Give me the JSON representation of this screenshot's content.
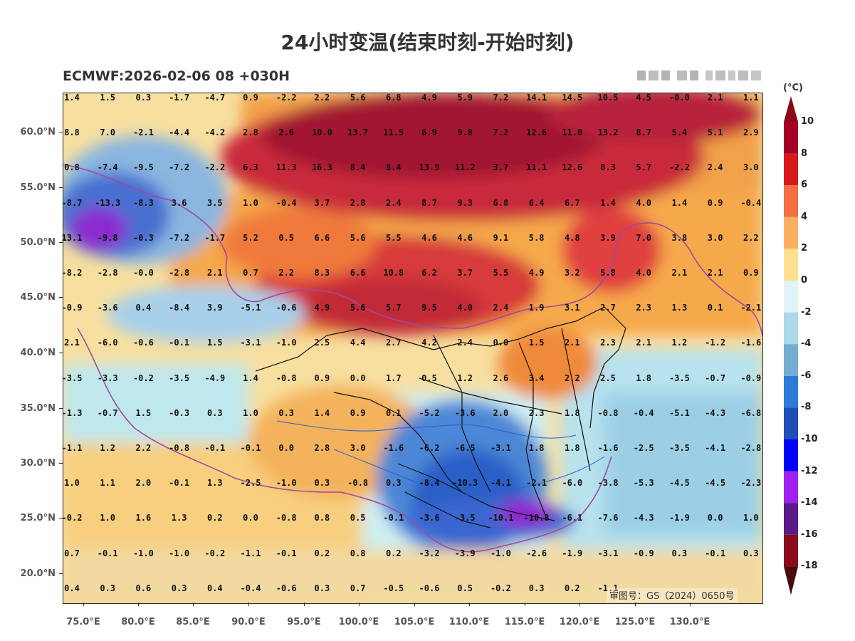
{
  "title": "24小时变温(结束时刻-开始时刻)",
  "subtitle": "ECMWF:2026-02-06 08 +030H",
  "review_number": "审图号：GS（2024）0650号",
  "lat_labels": [
    "60.0°N",
    "55.0°N",
    "50.0°N",
    "45.0°N",
    "40.0°N",
    "35.0°N",
    "30.0°N",
    "25.0°N",
    "20.0°N"
  ],
  "lon_labels": [
    "75.0°E",
    "80.0°E",
    "85.0°E",
    "90.0°E",
    "95.0°E",
    "100.0°E",
    "105.0°E",
    "110.0°E",
    "115.0°E",
    "120.0°E",
    "125.0°E",
    "130.0°E"
  ],
  "colorbar": {
    "unit": "(°C)",
    "labels": [
      "10",
      "8",
      "6",
      "4",
      "2",
      "0",
      "-2",
      "-4",
      "-6",
      "-8",
      "-10",
      "-12",
      "-14",
      "-16",
      "-18"
    ],
    "colors": [
      "#a50026",
      "#d7191c",
      "#f46d43",
      "#fdae61",
      "#fee090",
      "#e0f3f8",
      "#abd9e9",
      "#74add1",
      "#2c7bd6",
      "#1f4fb8",
      "#0000ff",
      "#a020f0",
      "#5a1a8a",
      "#8b0a1a"
    ]
  },
  "grid_values": [
    [
      "1.4",
      "1.5",
      "0.3",
      "-1.7",
      "-4.7",
      "0.9",
      "-2.2",
      "2.2",
      "5.6",
      "6.8",
      "4.9",
      "5.9",
      "7.2",
      "14.1",
      "14.5",
      "10.5",
      "4.5",
      "-0.0",
      "2.1",
      "1.1"
    ],
    [
      "8.8",
      "7.0",
      "-2.1",
      "-4.4",
      "-4.2",
      "2.8",
      "2.6",
      "10.0",
      "13.7",
      "11.5",
      "6.9",
      "9.8",
      "7.2",
      "12.6",
      "11.0",
      "13.2",
      "8.7",
      "5.4",
      "5.1",
      "2.9"
    ],
    [
      "0.8",
      "-7.4",
      "-9.5",
      "-7.2",
      "-2.2",
      "6.3",
      "11.3",
      "16.3",
      "8.4",
      "8.4",
      "13.9",
      "11.2",
      "3.7",
      "11.1",
      "12.6",
      "8.3",
      "5.7",
      "-2.2",
      "2.4",
      "3.0"
    ],
    [
      "-8.7",
      "-13.3",
      "-8.3",
      "3.6",
      "3.5",
      "1.0",
      "-0.4",
      "3.7",
      "2.8",
      "2.4",
      "8.7",
      "9.3",
      "6.8",
      "6.4",
      "6.7",
      "1.4",
      "4.0",
      "1.4",
      "0.9",
      "-0.4"
    ],
    [
      "13.1",
      "-9.8",
      "-0.3",
      "-7.2",
      "-1.7",
      "5.2",
      "0.5",
      "6.6",
      "5.6",
      "5.5",
      "4.6",
      "4.6",
      "9.1",
      "5.8",
      "4.8",
      "3.9",
      "7.0",
      "3.8",
      "3.0",
      "2.2"
    ],
    [
      "-8.2",
      "-2.8",
      "-0.0",
      "-2.8",
      "2.1",
      "0.7",
      "2.2",
      "8.3",
      "6.6",
      "10.8",
      "6.2",
      "3.7",
      "5.5",
      "4.9",
      "3.2",
      "5.8",
      "4.0",
      "2.1",
      "2.1",
      "0.9"
    ],
    [
      "-0.9",
      "-3.6",
      "0.4",
      "-8.4",
      "3.9",
      "-5.1",
      "-0.6",
      "4.9",
      "5.6",
      "5.7",
      "9.5",
      "4.0",
      "2.4",
      "1.9",
      "3.1",
      "2.7",
      "2.3",
      "1.3",
      "0.1",
      "-2.1"
    ],
    [
      "2.1",
      "-6.0",
      "-0.6",
      "-0.1",
      "1.5",
      "-3.1",
      "-1.0",
      "2.5",
      "4.4",
      "2.7",
      "4.2",
      "2.4",
      "0.0",
      "1.5",
      "2.1",
      "2.3",
      "2.1",
      "1.2",
      "-1.2",
      "-1.6"
    ],
    [
      "-3.5",
      "-3.3",
      "-0.2",
      "-3.5",
      "-4.9",
      "1.4",
      "-0.8",
      "0.9",
      "0.0",
      "1.7",
      "0.5",
      "1.2",
      "2.6",
      "3.4",
      "2.2",
      "2.5",
      "1.8",
      "-3.5",
      "-0.7",
      "-0.9"
    ],
    [
      "-1.3",
      "-0.7",
      "1.5",
      "-0.3",
      "0.3",
      "1.0",
      "0.3",
      "1.4",
      "0.9",
      "0.1",
      "-5.2",
      "-3.6",
      "2.0",
      "2.3",
      "1.8",
      "-0.8",
      "-0.4",
      "-5.1",
      "-4.3",
      "-6.8"
    ],
    [
      "-1.1",
      "1.2",
      "2.2",
      "-0.8",
      "-0.1",
      "-0.1",
      "0.0",
      "2.8",
      "3.0",
      "-1.6",
      "-6.2",
      "-6.5",
      "-3.1",
      "1.8",
      "1.8",
      "-1.6",
      "-2.5",
      "-3.5",
      "-4.1",
      "-2.8"
    ],
    [
      "1.0",
      "1.1",
      "2.0",
      "-0.1",
      "1.3",
      "-2.5",
      "-1.0",
      "0.3",
      "-0.8",
      "0.3",
      "-8.4",
      "-10.3",
      "-4.1",
      "-2.1",
      "-6.0",
      "-3.8",
      "-5.3",
      "-4.5",
      "-4.5",
      "-2.3"
    ],
    [
      "-0.2",
      "1.0",
      "1.6",
      "1.3",
      "0.2",
      "0.0",
      "-0.8",
      "0.8",
      "0.5",
      "-0.1",
      "-3.6",
      "-3.5",
      "-10.1",
      "-10.8",
      "-6.1",
      "-7.6",
      "-4.3",
      "-1.9",
      "0.0",
      "1.0"
    ],
    [
      "0.7",
      "-0.1",
      "-1.0",
      "-1.0",
      "-0.2",
      "-1.1",
      "-0.1",
      "0.2",
      "0.8",
      "0.2",
      "-3.2",
      "-3.9",
      "-1.0",
      "-2.6",
      "-1.9",
      "-3.1",
      "-0.9",
      "0.3",
      "-0.1",
      "0.3"
    ],
    [
      "0.4",
      "0.3",
      "0.6",
      "0.3",
      "0.4",
      "-0.4",
      "-0.6",
      "0.3",
      "0.7",
      "-0.5",
      "-0.6",
      "0.5",
      "-0.2",
      "0.3",
      "0.2",
      "-1.1",
      "",
      "",
      "",
      ""
    ]
  ]
}
